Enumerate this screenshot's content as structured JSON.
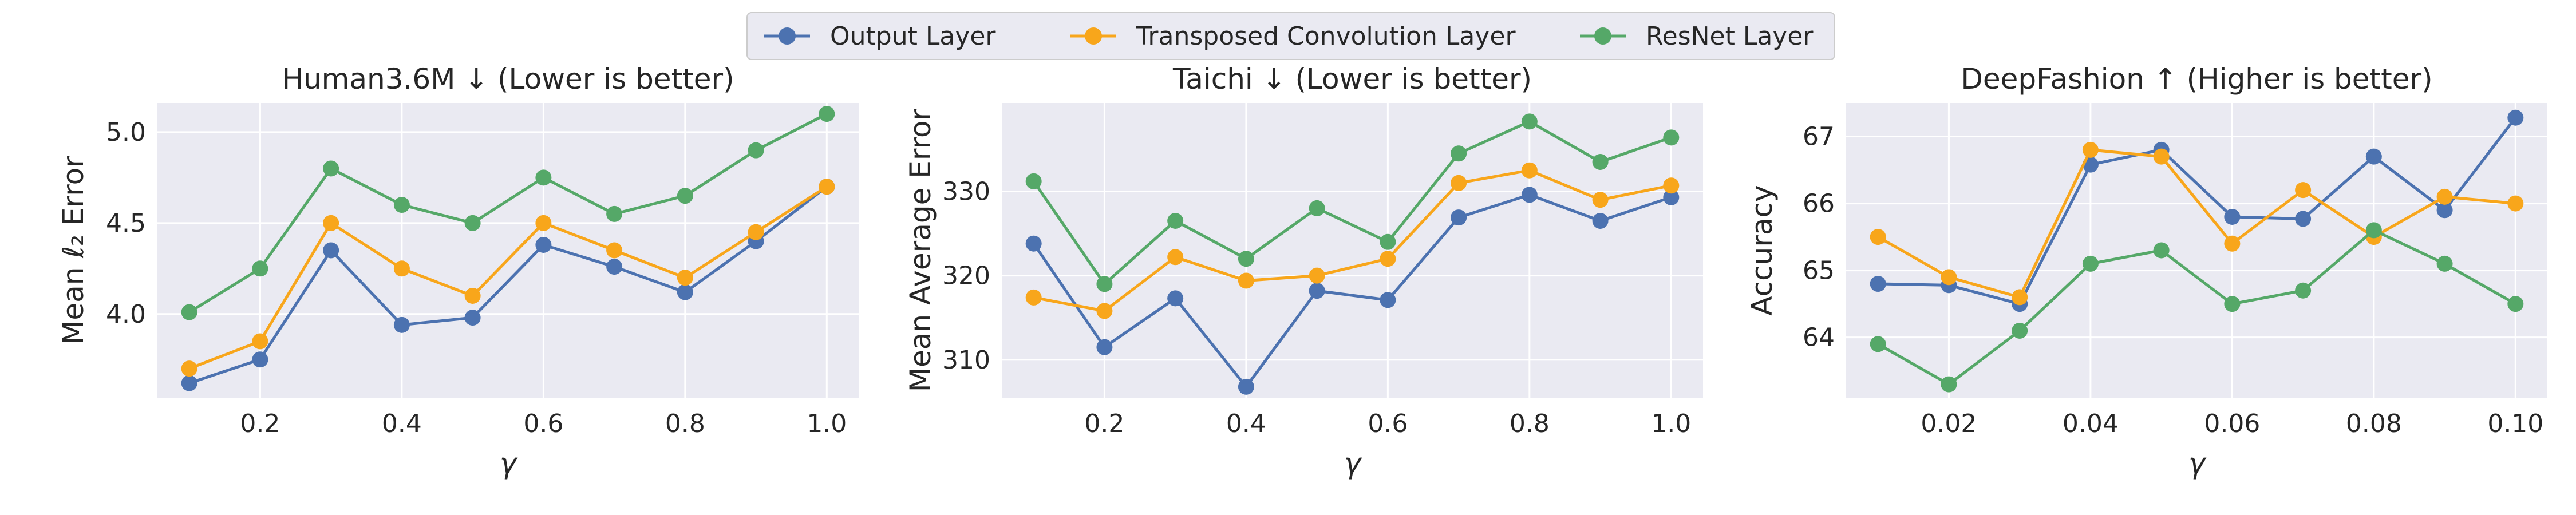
{
  "legend": {
    "items": [
      {
        "label": "Output Layer",
        "color": "#4c72b0"
      },
      {
        "label": "Transposed Convolution Layer",
        "color": "#f8a61b"
      },
      {
        "label": "ResNet Layer",
        "color": "#55a868"
      }
    ]
  },
  "style": {
    "panel_bg": "#eaeaf2",
    "grid": "#ffffff",
    "text": "#262626",
    "legend_bg": "#eaeaf2",
    "legend_border": "#cccccc"
  },
  "chart_data": [
    {
      "type": "line",
      "title": "Human3.6M ↓  (Lower is better)",
      "xlabel": "γ",
      "ylabel": "Mean ℓ₂ Error",
      "x": [
        0.1,
        0.2,
        0.3,
        0.4,
        0.5,
        0.6,
        0.7,
        0.8,
        0.9,
        1.0
      ],
      "xlim": [
        0.055,
        1.045
      ],
      "ylim": [
        3.54,
        5.16
      ],
      "xticks": [
        0.2,
        0.4,
        0.6,
        0.8,
        1.0
      ],
      "xtick_labels": [
        "0.2",
        "0.4",
        "0.6",
        "0.8",
        "1.0"
      ],
      "yticks": [
        4.0,
        4.5,
        5.0
      ],
      "ytick_labels": [
        "4.0",
        "4.5",
        "5.0"
      ],
      "grid": true,
      "series": [
        {
          "name": "Output Layer",
          "values": [
            3.62,
            3.75,
            4.35,
            3.94,
            3.98,
            4.38,
            4.26,
            4.12,
            4.4,
            4.7
          ]
        },
        {
          "name": "Transposed Convolution Layer",
          "values": [
            3.7,
            3.85,
            4.5,
            4.25,
            4.1,
            4.5,
            4.35,
            4.2,
            4.45,
            4.7
          ]
        },
        {
          "name": "ResNet Layer",
          "values": [
            4.01,
            4.25,
            4.8,
            4.6,
            4.5,
            4.75,
            4.55,
            4.65,
            4.9,
            5.1
          ]
        }
      ]
    },
    {
      "type": "line",
      "title": "Taichi ↓  (Lower is better)",
      "xlabel": "γ",
      "ylabel": "Mean Average Error",
      "x": [
        0.1,
        0.2,
        0.3,
        0.4,
        0.5,
        0.6,
        0.7,
        0.8,
        0.9,
        1.0
      ],
      "xlim": [
        0.055,
        1.045
      ],
      "ylim": [
        305.5,
        340.5
      ],
      "xticks": [
        0.2,
        0.4,
        0.6,
        0.8,
        1.0
      ],
      "xtick_labels": [
        "0.2",
        "0.4",
        "0.6",
        "0.8",
        "1.0"
      ],
      "yticks": [
        310,
        320,
        330
      ],
      "ytick_labels": [
        "310",
        "320",
        "330"
      ],
      "grid": true,
      "series": [
        {
          "name": "Output Layer",
          "values": [
            323.8,
            311.5,
            317.3,
            306.8,
            318.2,
            317.1,
            326.9,
            329.6,
            326.5,
            329.3
          ]
        },
        {
          "name": "Transposed Convolution Layer",
          "values": [
            317.4,
            315.8,
            322.2,
            319.4,
            320.0,
            322.0,
            331.0,
            332.5,
            329.0,
            330.7
          ]
        },
        {
          "name": "ResNet Layer",
          "values": [
            331.2,
            319.0,
            326.5,
            322.0,
            328.0,
            324.0,
            334.5,
            338.3,
            333.5,
            336.4
          ]
        }
      ]
    },
    {
      "type": "line",
      "title": "DeepFashion ↑  (Higher is better)",
      "xlabel": "γ",
      "ylabel": "Accuracy",
      "x": [
        0.01,
        0.02,
        0.03,
        0.04,
        0.05,
        0.06,
        0.07,
        0.08,
        0.09,
        0.1
      ],
      "xlim": [
        0.0055,
        0.1045
      ],
      "ylim": [
        63.1,
        67.5
      ],
      "xticks": [
        0.02,
        0.04,
        0.06,
        0.08,
        0.1
      ],
      "xtick_labels": [
        "0.02",
        "0.04",
        "0.06",
        "0.08",
        "0.10"
      ],
      "yticks": [
        64,
        65,
        66,
        67
      ],
      "ytick_labels": [
        "64",
        "65",
        "66",
        "67"
      ],
      "grid": true,
      "series": [
        {
          "name": "Output Layer",
          "values": [
            64.8,
            64.78,
            64.5,
            66.58,
            66.8,
            65.8,
            65.77,
            66.7,
            65.9,
            67.28
          ]
        },
        {
          "name": "Transposed Convolution Layer",
          "values": [
            65.5,
            64.9,
            64.6,
            66.8,
            66.7,
            65.4,
            66.2,
            65.5,
            66.1,
            66.0
          ]
        },
        {
          "name": "ResNet Layer",
          "values": [
            63.9,
            63.3,
            64.1,
            65.1,
            65.3,
            64.5,
            64.7,
            65.6,
            65.1,
            64.5
          ]
        }
      ]
    }
  ]
}
